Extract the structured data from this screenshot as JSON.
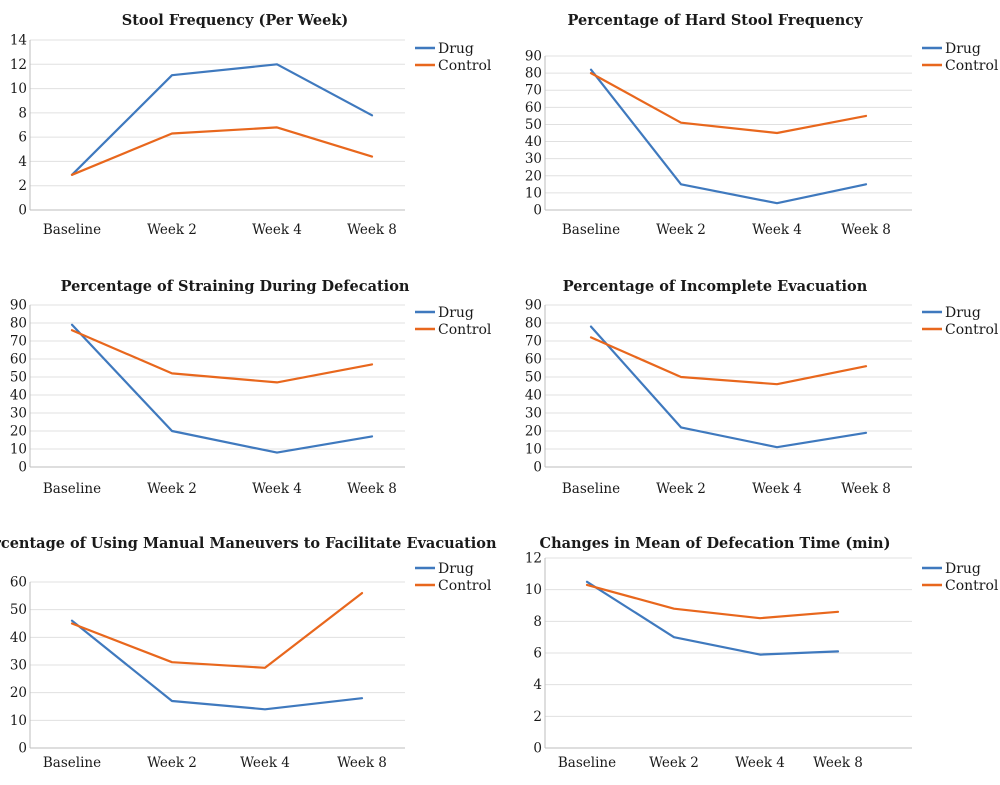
{
  "colors": {
    "drug": "#3f79be",
    "control": "#e8671d"
  },
  "chart_data": [
    {
      "type": "line",
      "title": "Stool Frequency (Per Week)",
      "categories": [
        "Baseline",
        "Week 2",
        "Week 4",
        "Week 8"
      ],
      "ylim": [
        0,
        14
      ],
      "yticks": [
        0,
        2,
        4,
        6,
        8,
        10,
        12,
        14
      ],
      "grid": true,
      "legend": "right",
      "series": [
        {
          "name": "Drug",
          "color": "#3f79be",
          "values": [
            2.9,
            11.1,
            12.0,
            7.8
          ]
        },
        {
          "name": "Control",
          "color": "#e8671d",
          "values": [
            2.9,
            6.3,
            6.8,
            4.4
          ]
        }
      ]
    },
    {
      "type": "line",
      "title": "Percentage of Hard Stool Frequency",
      "categories": [
        "Baseline",
        "Week 2",
        "Week 4",
        "Week 8"
      ],
      "ylim": [
        0,
        90
      ],
      "yticks": [
        0,
        10,
        20,
        30,
        40,
        50,
        60,
        70,
        80,
        90
      ],
      "grid": true,
      "legend": "right",
      "series": [
        {
          "name": "Drug",
          "color": "#3f79be",
          "values": [
            82,
            15,
            4,
            15
          ]
        },
        {
          "name": "Control",
          "color": "#e8671d",
          "values": [
            80,
            51,
            45,
            55
          ]
        }
      ]
    },
    {
      "type": "line",
      "title": "Percentage of Straining During Defecation",
      "categories": [
        "Baseline",
        "Week 2",
        "Week 4",
        "Week 8"
      ],
      "ylim": [
        0,
        90
      ],
      "yticks": [
        0,
        10,
        20,
        30,
        40,
        50,
        60,
        70,
        80,
        90
      ],
      "grid": true,
      "legend": "right",
      "series": [
        {
          "name": "Drug",
          "color": "#3f79be",
          "values": [
            79,
            20,
            8,
            17
          ]
        },
        {
          "name": "Control",
          "color": "#e8671d",
          "values": [
            76,
            52,
            47,
            57
          ]
        }
      ]
    },
    {
      "type": "line",
      "title": "Percentage of Incomplete Evacuation",
      "categories": [
        "Baseline",
        "Week 2",
        "Week 4",
        "Week 8"
      ],
      "ylim": [
        0,
        90
      ],
      "yticks": [
        0,
        10,
        20,
        30,
        40,
        50,
        60,
        70,
        80,
        90
      ],
      "grid": true,
      "legend": "right",
      "series": [
        {
          "name": "Drug",
          "color": "#3f79be",
          "values": [
            78,
            22,
            11,
            19
          ]
        },
        {
          "name": "Control",
          "color": "#e8671d",
          "values": [
            72,
            50,
            46,
            56
          ]
        }
      ]
    },
    {
      "type": "line",
      "title": "Percentage of Using Manual Maneuvers to Facilitate Evacuation",
      "categories": [
        "Baseline",
        "Week 2",
        "Week 4",
        "Week 8"
      ],
      "ylim": [
        0,
        60
      ],
      "yticks": [
        0,
        10,
        20,
        30,
        40,
        50,
        60
      ],
      "grid": true,
      "legend": "right",
      "series": [
        {
          "name": "Drug",
          "color": "#3f79be",
          "values": [
            46,
            17,
            14,
            18
          ]
        },
        {
          "name": "Control",
          "color": "#e8671d",
          "values": [
            45,
            31,
            29,
            56
          ]
        }
      ]
    },
    {
      "type": "line",
      "title": "Changes in Mean of Defecation Time (min)",
      "categories": [
        "Baseline",
        "Week 2",
        "Week 4",
        "Week 8"
      ],
      "ylim": [
        0,
        12
      ],
      "yticks": [
        0,
        2,
        4,
        6,
        8,
        10,
        12
      ],
      "grid": true,
      "legend": "right",
      "series": [
        {
          "name": "Drug",
          "color": "#3f79be",
          "values": [
            10.5,
            7.0,
            5.9,
            6.1
          ]
        },
        {
          "name": "Control",
          "color": "#e8671d",
          "values": [
            10.3,
            8.8,
            8.2,
            8.6
          ]
        }
      ]
    }
  ]
}
